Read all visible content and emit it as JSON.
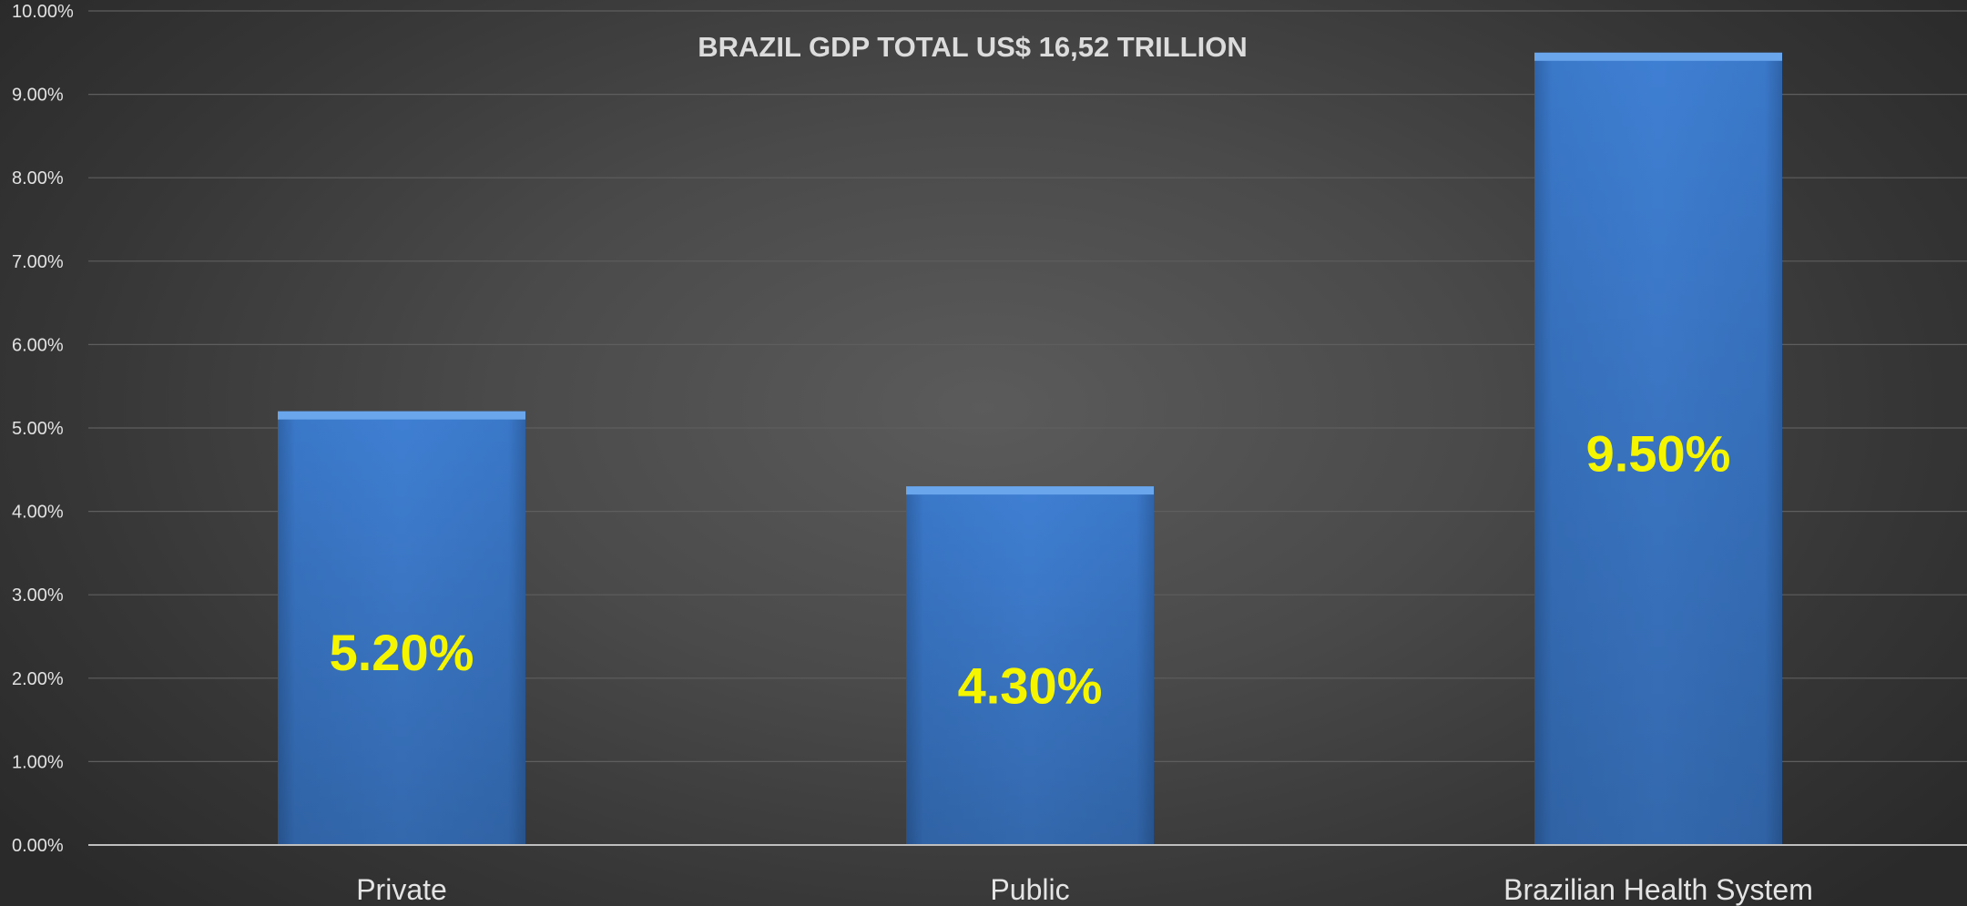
{
  "chart_data": {
    "type": "bar",
    "title": "BRAZIL GDP TOTAL US$ 16,52 TRILLION",
    "categories": [
      "Private",
      "Public",
      "Brazilian Health System"
    ],
    "values": [
      5.2,
      4.3,
      9.5
    ],
    "data_labels": [
      "5.20%",
      "4.30%",
      "9.50%"
    ],
    "ylim": [
      0,
      10
    ],
    "y_ticks": [
      0,
      1,
      2,
      3,
      4,
      5,
      6,
      7,
      8,
      9,
      10
    ],
    "y_tick_labels": [
      "0.00%",
      "1.00%",
      "2.00%",
      "3.00%",
      "4.00%",
      "5.00%",
      "6.00%",
      "7.00%",
      "8.00%",
      "9.00%",
      "10.00%"
    ],
    "xlabel": "",
    "ylabel": "",
    "grid": true,
    "legend": "none",
    "colors": {
      "bar": "#3f7fd3",
      "bar_top": "#6aa6ec",
      "data_label": "#f5f500",
      "gridline": "#5e5e5e",
      "axis": "#bfbfbf"
    }
  }
}
